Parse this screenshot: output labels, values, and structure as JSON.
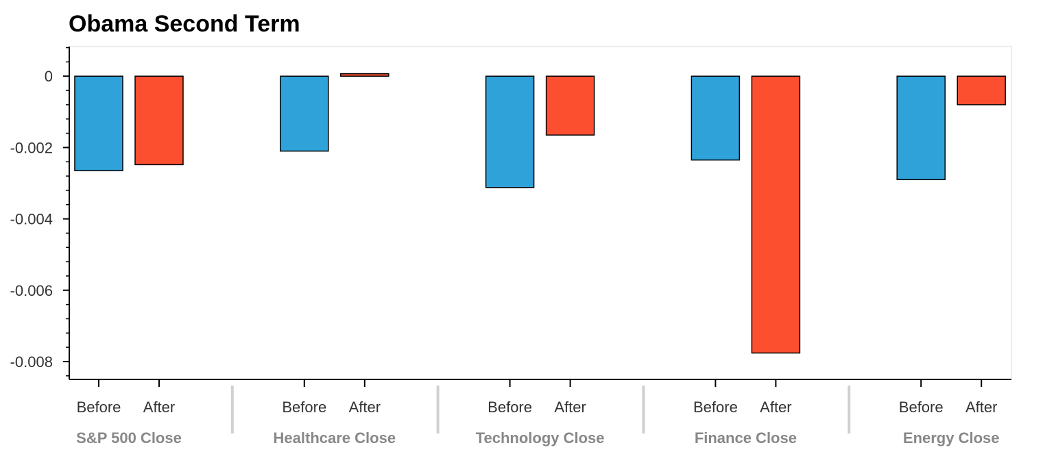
{
  "chart_data": {
    "type": "bar",
    "title": "Obama Second Term",
    "groups": [
      "S&P 500 Close",
      "Healthcare Close",
      "Technology Close",
      "Finance Close",
      "Energy Close"
    ],
    "subcategories": [
      "Before",
      "After"
    ],
    "series": [
      {
        "values": [
          -0.00265,
          -0.0021,
          -0.00312,
          -0.00235,
          -0.0029
        ]
      },
      {
        "values": [
          -0.00248,
          7e-05,
          -0.00165,
          -0.00776,
          -0.0008
        ]
      }
    ],
    "ylim": [
      -0.0085,
      0.00083
    ],
    "yticks": [
      0,
      -0.002,
      -0.004,
      -0.006,
      -0.008
    ],
    "ytick_labels": [
      "0",
      "-0.002",
      "-0.004",
      "-0.006",
      "-0.008"
    ],
    "colors": {
      "Before": "#30a2da",
      "After": "#fc4f30"
    },
    "grid": false,
    "xlabel": "",
    "ylabel": ""
  }
}
